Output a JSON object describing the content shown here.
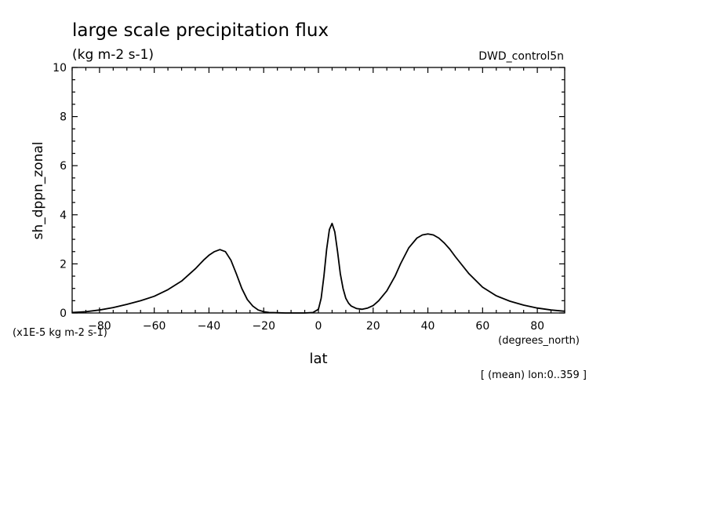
{
  "chart_data": {
    "type": "line",
    "title": "large scale precipitation flux",
    "subtitle": "(kg m-2 s-1)",
    "dataset_label": "DWD_control5n",
    "xlabel": "lat",
    "ylabel": "sh_dppn_zonal",
    "x_units": "(degrees_north)",
    "y_scale_label": "(x1E-5 kg m-2 s-1)",
    "footnote": "[ (mean) lon:0..359 ]",
    "xlim": [
      -90,
      90
    ],
    "ylim": [
      0,
      10
    ],
    "x_ticks": [
      -80,
      -60,
      -40,
      -20,
      0,
      20,
      40,
      60,
      80
    ],
    "y_ticks": [
      0,
      2,
      4,
      6,
      8,
      10
    ],
    "x_tick_labels": [
      "−80",
      "−60",
      "−40",
      "−20",
      "0",
      "20",
      "40",
      "60",
      "80"
    ],
    "y_tick_labels": [
      "0",
      "2",
      "4",
      "6",
      "8",
      "10"
    ],
    "grid": false,
    "series": [
      {
        "x": [
          -90,
          -85,
          -80,
          -75,
          -70,
          -65,
          -60,
          -55,
          -50,
          -45,
          -42,
          -40,
          -38,
          -36,
          -34,
          -32,
          -30,
          -28,
          -26,
          -24,
          -22,
          -20,
          -18,
          -15,
          -12,
          -10,
          -5,
          -2,
          0,
          1,
          2,
          3,
          4,
          5,
          6,
          7,
          8,
          9,
          10,
          11,
          12,
          14,
          16,
          18,
          20,
          22,
          25,
          28,
          30,
          33,
          36,
          38,
          40,
          42,
          44,
          46,
          48,
          50,
          55,
          60,
          65,
          70,
          75,
          80,
          85,
          90
        ],
        "y": [
          0.02,
          0.05,
          0.12,
          0.22,
          0.35,
          0.5,
          0.68,
          0.95,
          1.3,
          1.8,
          2.15,
          2.35,
          2.5,
          2.58,
          2.5,
          2.15,
          1.6,
          1.0,
          0.55,
          0.28,
          0.12,
          0.05,
          0.02,
          0.01,
          0.0,
          0.0,
          0.0,
          0.02,
          0.15,
          0.6,
          1.5,
          2.6,
          3.4,
          3.65,
          3.3,
          2.5,
          1.6,
          1.0,
          0.6,
          0.4,
          0.28,
          0.18,
          0.15,
          0.2,
          0.3,
          0.5,
          0.9,
          1.5,
          2.0,
          2.65,
          3.05,
          3.18,
          3.22,
          3.18,
          3.05,
          2.85,
          2.6,
          2.3,
          1.6,
          1.05,
          0.7,
          0.48,
          0.32,
          0.2,
          0.12,
          0.07
        ]
      }
    ]
  }
}
